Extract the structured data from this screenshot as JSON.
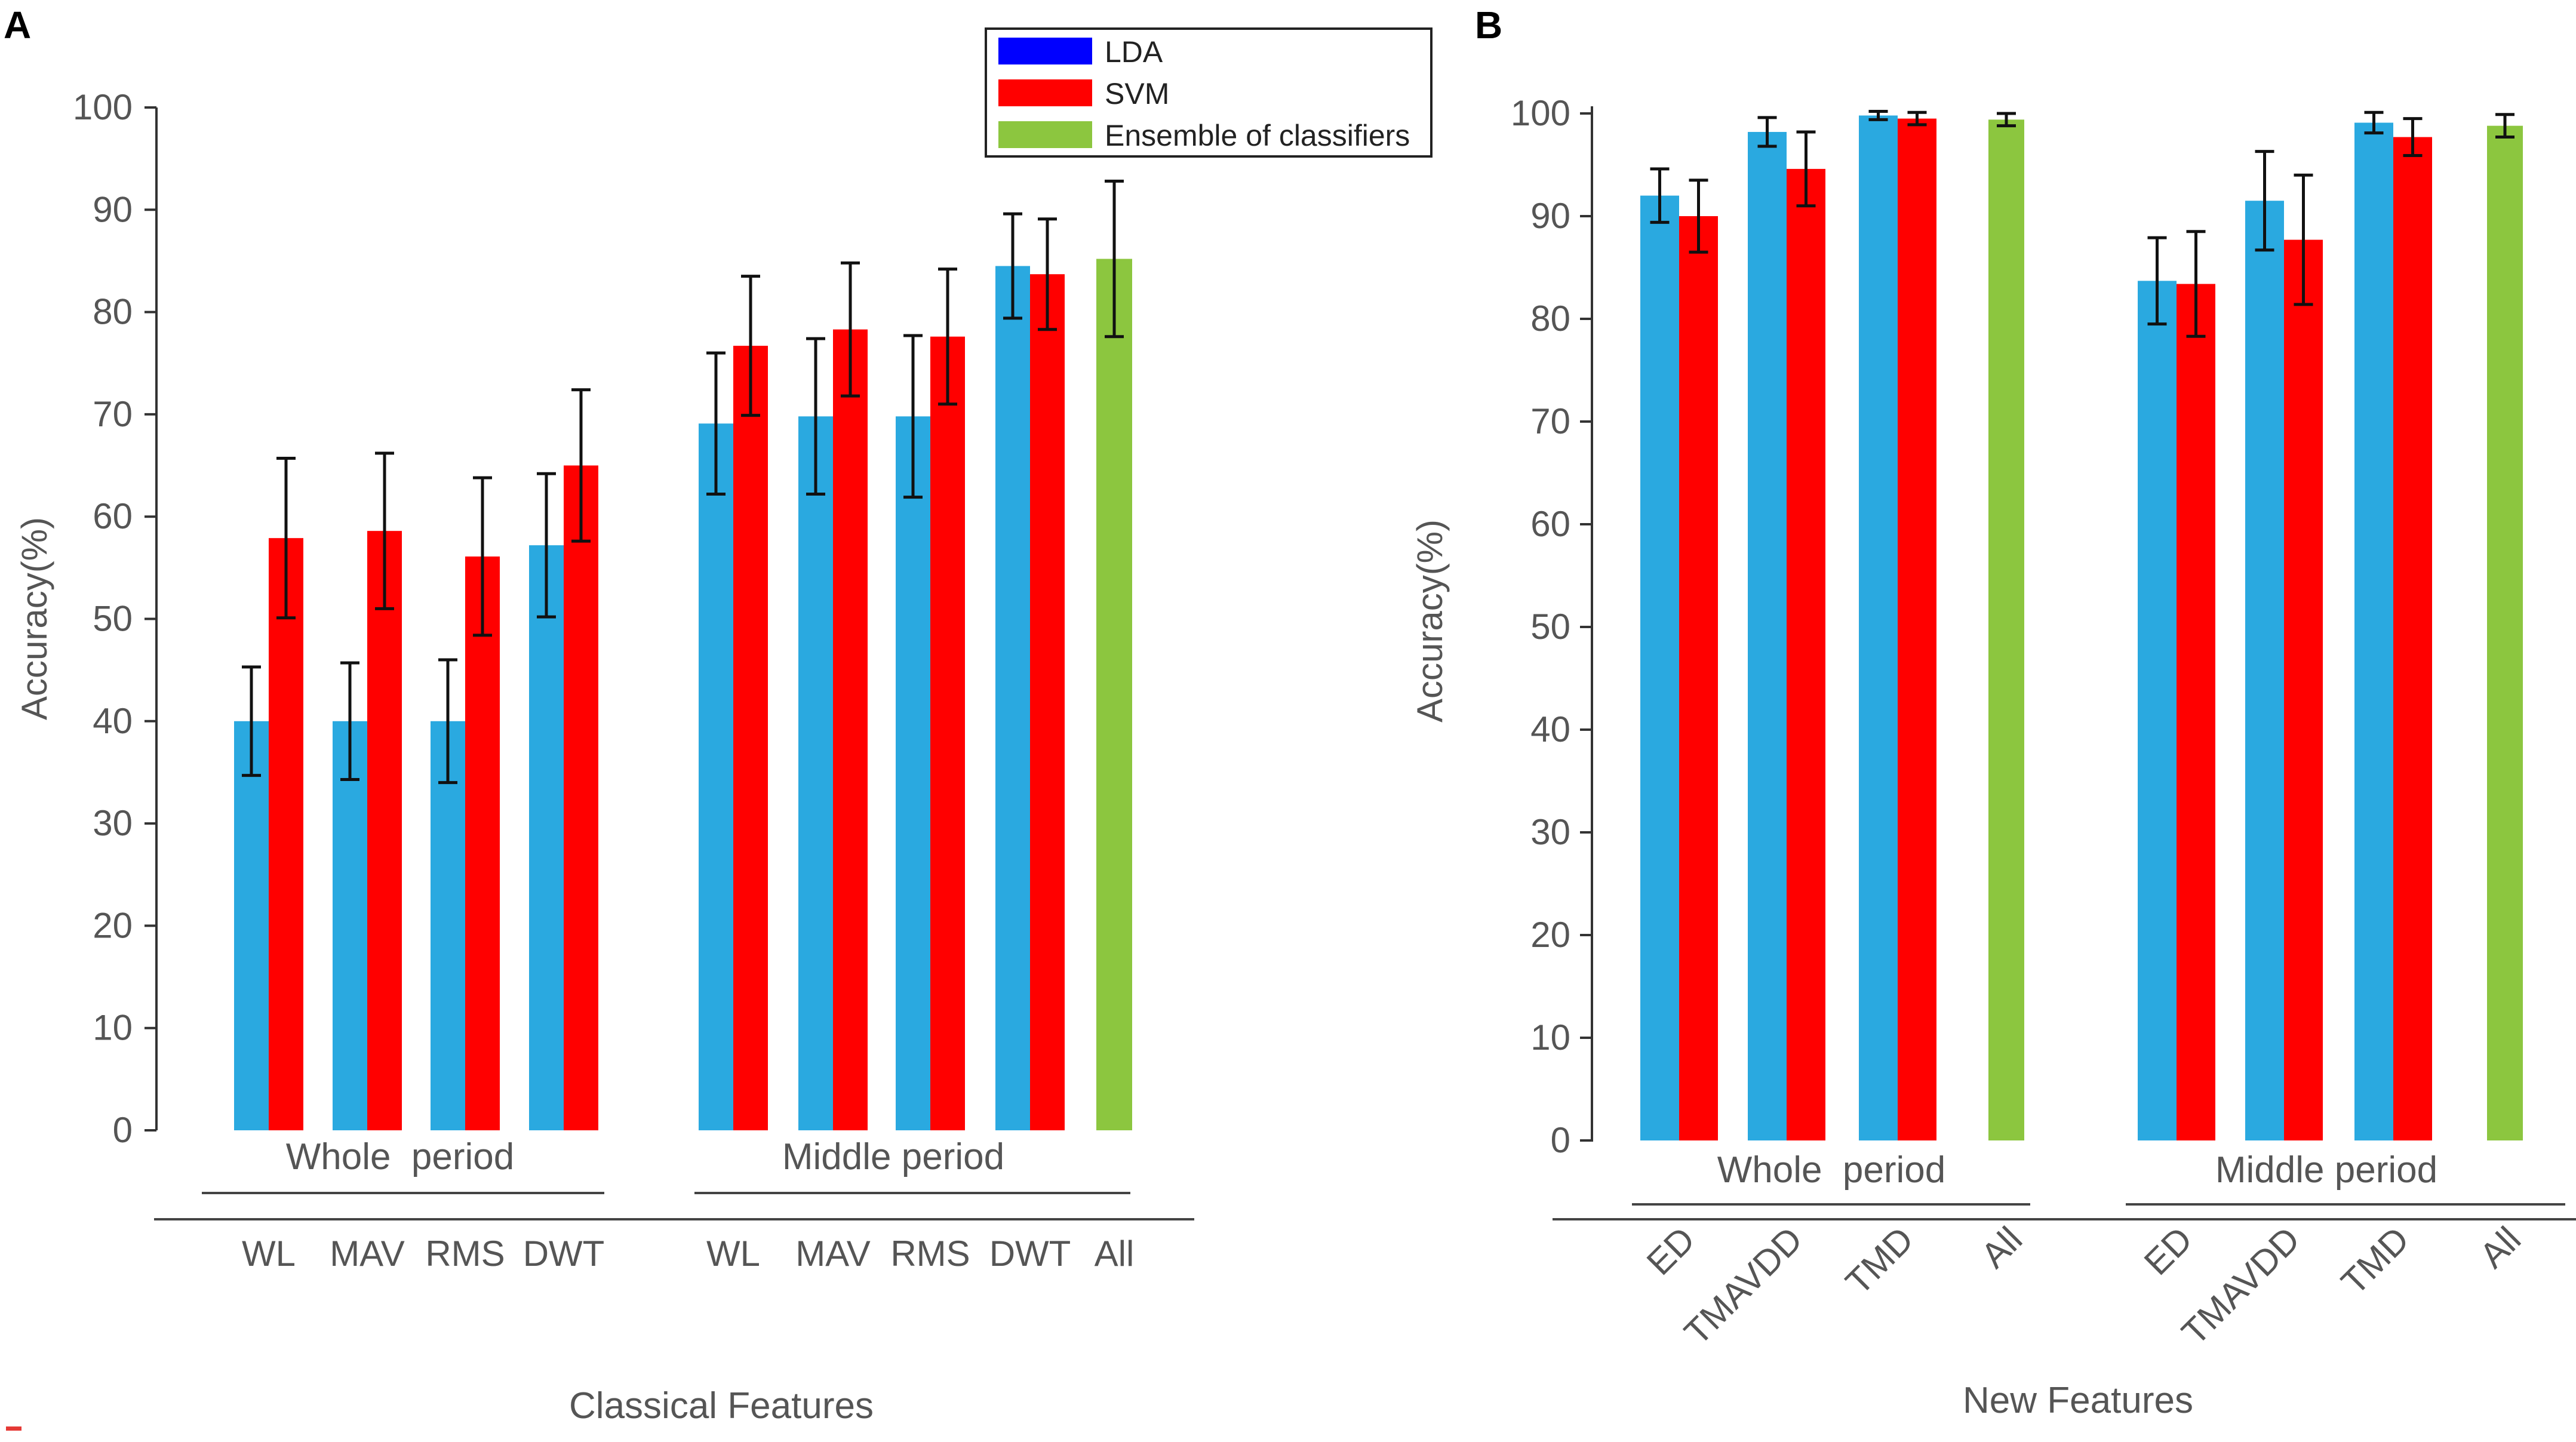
{
  "colors": {
    "lda_bar": "#2aa9e0",
    "svm_bar": "#ff0000",
    "ensemble_bar": "#8cc63f",
    "lda_legend": "#0000ff",
    "error": "#111111",
    "text": "#555555",
    "axis": "#333333"
  },
  "legend": {
    "items": [
      {
        "key": "lda",
        "label": "LDA"
      },
      {
        "key": "svm",
        "label": "SVM"
      },
      {
        "key": "ens",
        "label": "Ensemble of classifiers"
      }
    ]
  },
  "chart_data": [
    {
      "type": "bar",
      "panel": "A",
      "title": "",
      "xlabel": "Classical Features",
      "ylabel": "Accuracy(%)",
      "ylim": [
        0,
        100
      ],
      "yticks": [
        0,
        10,
        20,
        30,
        40,
        50,
        60,
        70,
        80,
        90,
        100
      ],
      "groups": [
        {
          "label": "Whole  period",
          "categories": [
            {
              "label": "WL",
              "bars": [
                {
                  "series": "lda",
                  "value": 40.0,
                  "err": 5.3
                },
                {
                  "series": "svm",
                  "value": 57.9,
                  "err": 7.8
                }
              ]
            },
            {
              "label": "MAV",
              "bars": [
                {
                  "series": "lda",
                  "value": 40.0,
                  "err": 5.7
                },
                {
                  "series": "svm",
                  "value": 58.6,
                  "err": 7.6
                }
              ]
            },
            {
              "label": "RMS",
              "bars": [
                {
                  "series": "lda",
                  "value": 40.0,
                  "err": 6.0
                },
                {
                  "series": "svm",
                  "value": 56.1,
                  "err": 7.7
                }
              ]
            },
            {
              "label": "DWT",
              "bars": [
                {
                  "series": "lda",
                  "value": 57.2,
                  "err": 7.0
                },
                {
                  "series": "svm",
                  "value": 65.0,
                  "err": 7.4
                }
              ]
            }
          ]
        },
        {
          "label": "Middle period",
          "categories": [
            {
              "label": "WL",
              "bars": [
                {
                  "series": "lda",
                  "value": 69.1,
                  "err": 6.9
                },
                {
                  "series": "svm",
                  "value": 76.7,
                  "err": 6.8
                }
              ]
            },
            {
              "label": "MAV",
              "bars": [
                {
                  "series": "lda",
                  "value": 69.8,
                  "err": 7.6
                },
                {
                  "series": "svm",
                  "value": 78.3,
                  "err": 6.5
                }
              ]
            },
            {
              "label": "RMS",
              "bars": [
                {
                  "series": "lda",
                  "value": 69.8,
                  "err": 7.9
                },
                {
                  "series": "svm",
                  "value": 77.6,
                  "err": 6.6
                }
              ]
            },
            {
              "label": "DWT",
              "bars": [
                {
                  "series": "lda",
                  "value": 84.5,
                  "err": 5.1
                },
                {
                  "series": "svm",
                  "value": 83.7,
                  "err": 5.4
                }
              ]
            },
            {
              "label": "All",
              "bars": [
                {
                  "series": "ens",
                  "value": 85.2,
                  "err": 7.6
                }
              ]
            }
          ]
        }
      ]
    },
    {
      "type": "bar",
      "panel": "B",
      "title": "",
      "xlabel": "New Features",
      "ylabel": "Accuracy(%)",
      "ylim": [
        0,
        100
      ],
      "yticks": [
        0,
        10,
        20,
        30,
        40,
        50,
        60,
        70,
        80,
        90,
        100
      ],
      "groups": [
        {
          "label": "Whole  period",
          "categories": [
            {
              "label": "ED",
              "bars": [
                {
                  "series": "lda",
                  "value": 92.0,
                  "err": 2.6
                },
                {
                  "series": "svm",
                  "value": 90.0,
                  "err": 3.5
                }
              ]
            },
            {
              "label": "TMAVDD",
              "bars": [
                {
                  "series": "lda",
                  "value": 98.2,
                  "err": 1.4
                },
                {
                  "series": "svm",
                  "value": 94.6,
                  "err": 3.6
                }
              ]
            },
            {
              "label": "TMD",
              "bars": [
                {
                  "series": "lda",
                  "value": 99.8,
                  "err": 0.4
                },
                {
                  "series": "svm",
                  "value": 99.5,
                  "err": 0.6
                }
              ]
            },
            {
              "label": "All",
              "bars": [
                {
                  "series": "ens",
                  "value": 99.4,
                  "err": 0.6
                }
              ]
            }
          ]
        },
        {
          "label": "Middle period",
          "categories": [
            {
              "label": "ED",
              "bars": [
                {
                  "series": "lda",
                  "value": 83.7,
                  "err": 4.2
                },
                {
                  "series": "svm",
                  "value": 83.4,
                  "err": 5.1
                }
              ]
            },
            {
              "label": "TMAVDD",
              "bars": [
                {
                  "series": "lda",
                  "value": 91.5,
                  "err": 4.8
                },
                {
                  "series": "svm",
                  "value": 87.7,
                  "err": 6.3
                }
              ]
            },
            {
              "label": "TMD",
              "bars": [
                {
                  "series": "lda",
                  "value": 99.1,
                  "err": 1.0
                },
                {
                  "series": "svm",
                  "value": 97.7,
                  "err": 1.8
                }
              ]
            },
            {
              "label": "All",
              "bars": [
                {
                  "series": "ens",
                  "value": 98.8,
                  "err": 1.1
                }
              ]
            }
          ]
        }
      ]
    }
  ]
}
